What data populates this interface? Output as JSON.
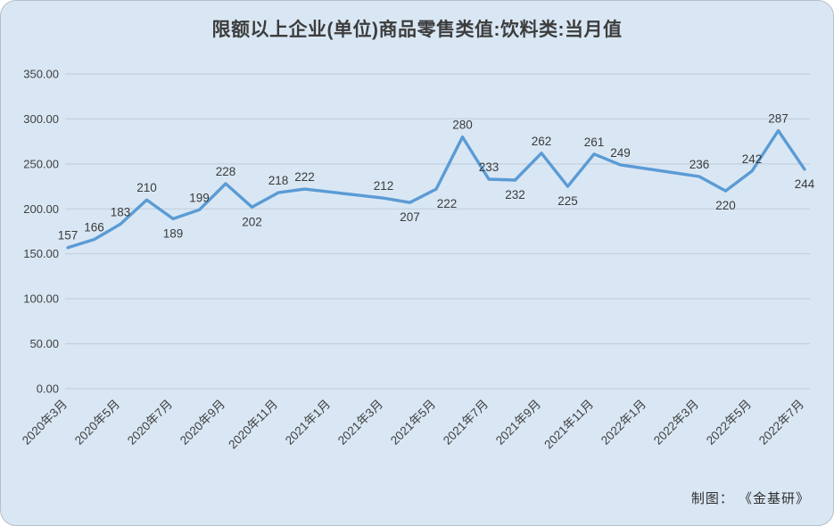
{
  "title": "限额以上企业(单位)商品零售类值:饮料类:当月值",
  "credit": "制图：  《金基研》",
  "colors": {
    "background": "#d9e7f4",
    "line": "#5b9bd5",
    "grid": "#c3cfdd",
    "text": "#3f3f3f",
    "label": "#3a3a3a"
  },
  "chart_data": {
    "type": "line",
    "title": "限额以上企业(单位)商品零售类值:饮料类:当月值",
    "legend": "none",
    "grid": "horizontal",
    "ylim": [
      0,
      350
    ],
    "y_tick_step": 50,
    "y_tick_labels": [
      "0.00",
      "50.00",
      "100.00",
      "150.00",
      "200.00",
      "250.00",
      "300.00",
      "350.00"
    ],
    "x_axis_start": "2020年3月",
    "x_axis_end": "2022年7月",
    "x_tick_month_interval": 2,
    "x_tick_labels": [
      "2020年3月",
      "2020年5月",
      "2020年7月",
      "2020年9月",
      "2020年11月",
      "2021年1月",
      "2021年3月",
      "2021年5月",
      "2021年7月",
      "2021年9月",
      "2021年11月",
      "2022年1月",
      "2022年3月",
      "2022年5月",
      "2022年7月"
    ],
    "series": [
      {
        "name": "限额以上企业(单位)商品零售类值:饮料类:当月值",
        "points": [
          {
            "x": "2020年3月",
            "month_index": 0,
            "value": 157,
            "label": "157",
            "label_side": "above"
          },
          {
            "x": "2020年4月",
            "month_index": 1,
            "value": 166,
            "label": "166",
            "label_side": "above"
          },
          {
            "x": "2020年5月",
            "month_index": 2,
            "value": 183,
            "label": "183",
            "label_side": "above"
          },
          {
            "x": "2020年6月",
            "month_index": 3,
            "value": 210,
            "label": "210",
            "label_side": "above"
          },
          {
            "x": "2020年7月",
            "month_index": 4,
            "value": 189,
            "label": "189",
            "label_side": "below"
          },
          {
            "x": "2020年8月",
            "month_index": 5,
            "value": 199,
            "label": "199",
            "label_side": "above"
          },
          {
            "x": "2020年9月",
            "month_index": 6,
            "value": 228,
            "label": "228",
            "label_side": "above"
          },
          {
            "x": "2020年10月",
            "month_index": 7,
            "value": 202,
            "label": "202",
            "label_side": "below"
          },
          {
            "x": "2020年11月",
            "month_index": 8,
            "value": 218,
            "label": "218",
            "label_side": "above"
          },
          {
            "x": "2020年12月",
            "month_index": 9,
            "value": 222,
            "label": "222",
            "label_side": "above"
          },
          {
            "x": "2021年3月",
            "month_index": 12,
            "value": 212,
            "label": "212",
            "label_side": "above"
          },
          {
            "x": "2021年4月",
            "month_index": 13,
            "value": 207,
            "label": "207",
            "label_side": "below"
          },
          {
            "x": "2021年5月",
            "month_index": 14,
            "value": 222,
            "label": "222",
            "label_side": "below",
            "label_dx": 12
          },
          {
            "x": "2021年6月",
            "month_index": 15,
            "value": 280,
            "label": "280",
            "label_side": "above"
          },
          {
            "x": "2021年7月",
            "month_index": 16,
            "value": 233,
            "label": "233",
            "label_side": "above"
          },
          {
            "x": "2021年8月",
            "month_index": 17,
            "value": 232,
            "label": "232",
            "label_side": "below"
          },
          {
            "x": "2021年9月",
            "month_index": 18,
            "value": 262,
            "label": "262",
            "label_side": "above"
          },
          {
            "x": "2021年10月",
            "month_index": 19,
            "value": 225,
            "label": "225",
            "label_side": "below"
          },
          {
            "x": "2021年11月",
            "month_index": 20,
            "value": 261,
            "label": "261",
            "label_side": "above"
          },
          {
            "x": "2021年12月",
            "month_index": 21,
            "value": 249,
            "label": "249",
            "label_side": "above"
          },
          {
            "x": "2022年3月",
            "month_index": 24,
            "value": 236,
            "label": "236",
            "label_side": "above"
          },
          {
            "x": "2022年4月",
            "month_index": 25,
            "value": 220,
            "label": "220",
            "label_side": "below"
          },
          {
            "x": "2022年5月",
            "month_index": 26,
            "value": 242,
            "label": "242",
            "label_side": "above"
          },
          {
            "x": "2022年6月",
            "month_index": 27,
            "value": 287,
            "label": "287",
            "label_side": "above"
          },
          {
            "x": "2022年7月",
            "month_index": 28,
            "value": 244,
            "label": "244",
            "label_side": "below"
          }
        ]
      }
    ]
  }
}
